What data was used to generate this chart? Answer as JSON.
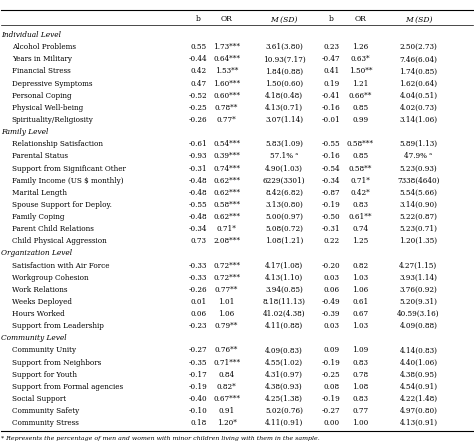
{
  "footnote": "* Represents the percentage of men and women with minor children living with them in the sample.",
  "col_headers": [
    "b",
    "OR",
    "M (SD)",
    "b",
    "OR",
    "M (SD)"
  ],
  "sections": [
    {
      "label": "Individual Level",
      "rows": [
        {
          "name": "Alcohol Problems",
          "b1": "0.55",
          "or1": "1.73***",
          "msd1": "3.61(3.80)",
          "b2": "0.23",
          "or2": "1.26",
          "msd2": "2.50(2.73)"
        },
        {
          "name": "Years in Military",
          "b1": "-0.44",
          "or1": "0.64***",
          "msd1": "10.93(7.17)",
          "b2": "-0.47",
          "or2": "0.63*",
          "msd2": "7.46(6.04)"
        },
        {
          "name": "Financial Stress",
          "b1": "0.42",
          "or1": "1.53**",
          "msd1": "1.84(0.88)",
          "b2": "0.41",
          "or2": "1.50**",
          "msd2": "1.74(0.85)"
        },
        {
          "name": "Depressive Symptoms",
          "b1": "0.47",
          "or1": "1.60***",
          "msd1": "1.50(0.60)",
          "b2": "0.19",
          "or2": "1.21",
          "msd2": "1.62(0.64)"
        },
        {
          "name": "Personal Coping",
          "b1": "-0.52",
          "or1": "0.60***",
          "msd1": "4.18(0.48)",
          "b2": "-0.41",
          "or2": "0.66**",
          "msd2": "4.04(0.51)"
        },
        {
          "name": "Physical Well-being",
          "b1": "-0.25",
          "or1": "0.78**",
          "msd1": "4.13(0.71)",
          "b2": "-0.16",
          "or2": "0.85",
          "msd2": "4.02(0.73)"
        },
        {
          "name": "Spirituality/Religiosity",
          "b1": "-0.26",
          "or1": "0.77*",
          "msd1": "3.07(1.14)",
          "b2": "-0.01",
          "or2": "0.99",
          "msd2": "3.14(1.06)"
        }
      ]
    },
    {
      "label": "Family Level",
      "rows": [
        {
          "name": "Relationship Satisfaction",
          "b1": "-0.61",
          "or1": "0.54***",
          "msd1": "5.83(1.09)",
          "b2": "-0.55",
          "or2": "0.58***",
          "msd2": "5.89(1.13)"
        },
        {
          "name": "Parental Status",
          "b1": "-0.93",
          "or1": "0.39***",
          "msd1": "57.1% ᵃ",
          "b2": "-0.16",
          "or2": "0.85",
          "msd2": "47.9% ᵃ"
        },
        {
          "name": "Support from Significant Other",
          "b1": "-0.31",
          "or1": "0.74***",
          "msd1": "4.90(1.03)",
          "b2": "-0.54",
          "or2": "0.58**",
          "msd2": "5.23(0.93)"
        },
        {
          "name": "Family Income (US $ monthly)",
          "b1": "-0.48",
          "or1": "0.62***",
          "msd1": "6229(3301)",
          "b2": "-0.34",
          "or2": "0.71*",
          "msd2": "7338(4640)"
        },
        {
          "name": "Marital Length",
          "b1": "-0.48",
          "or1": "0.62***",
          "msd1": "8.42(6.82)",
          "b2": "-0.87",
          "or2": "0.42*",
          "msd2": "5.54(5.66)"
        },
        {
          "name": "Spouse Support for Deploy.",
          "b1": "-0.55",
          "or1": "0.58***",
          "msd1": "3.13(0.80)",
          "b2": "-0.19",
          "or2": "0.83",
          "msd2": "3.14(0.90)"
        },
        {
          "name": "Family Coping",
          "b1": "-0.48",
          "or1": "0.62***",
          "msd1": "5.00(0.97)",
          "b2": "-0.50",
          "or2": "0.61**",
          "msd2": "5.22(0.87)"
        },
        {
          "name": "Parent Child Relations",
          "b1": "-0.34",
          "or1": "0.71*",
          "msd1": "5.08(0.72)",
          "b2": "-0.31",
          "or2": "0.74",
          "msd2": "5.23(0.71)"
        },
        {
          "name": "Child Physical Aggression",
          "b1": "0.73",
          "or1": "2.08***",
          "msd1": "1.08(1.21)",
          "b2": "0.22",
          "or2": "1.25",
          "msd2": "1.20(1.35)"
        }
      ]
    },
    {
      "label": "Organization Level",
      "rows": [
        {
          "name": "Satisfaction with Air Force",
          "b1": "-0.33",
          "or1": "0.72***",
          "msd1": "4.17(1.08)",
          "b2": "-0.20",
          "or2": "0.82",
          "msd2": "4.27(1.15)"
        },
        {
          "name": "Workgroup Cohesion",
          "b1": "-0.33",
          "or1": "0.72***",
          "msd1": "4.13(1.10)",
          "b2": "0.03",
          "or2": "1.03",
          "msd2": "3.93(1.14)"
        },
        {
          "name": "Work Relations",
          "b1": "-0.26",
          "or1": "0.77**",
          "msd1": "3.94(0.85)",
          "b2": "0.06",
          "or2": "1.06",
          "msd2": "3.76(0.92)"
        },
        {
          "name": "Weeks Deployed",
          "b1": "0.01",
          "or1": "1.01",
          "msd1": "8.18(11.13)",
          "b2": "-0.49",
          "or2": "0.61",
          "msd2": "5.20(9.31)"
        },
        {
          "name": "Hours Worked",
          "b1": "0.06",
          "or1": "1.06",
          "msd1": "41.02(4.38)",
          "b2": "-0.39",
          "or2": "0.67",
          "msd2": "40.59(3.16)"
        },
        {
          "name": "Support from Leadership",
          "b1": "-0.23",
          "or1": "0.79**",
          "msd1": "4.11(0.88)",
          "b2": "0.03",
          "or2": "1.03",
          "msd2": "4.09(0.88)"
        }
      ]
    },
    {
      "label": "Community Level",
      "rows": [
        {
          "name": "Community Unity",
          "b1": "-0.27",
          "or1": "0.76**",
          "msd1": "4.09(0.83)",
          "b2": "0.09",
          "or2": "1.09",
          "msd2": "4.14(0.83)"
        },
        {
          "name": "Support from Neighbors",
          "b1": "-0.35",
          "or1": "0.71***",
          "msd1": "4.55(1.02)",
          "b2": "-0.19",
          "or2": "0.83",
          "msd2": "4.40(1.06)"
        },
        {
          "name": "Support for Youth",
          "b1": "-0.17",
          "or1": "0.84",
          "msd1": "4.31(0.97)",
          "b2": "-0.25",
          "or2": "0.78",
          "msd2": "4.38(0.95)"
        },
        {
          "name": "Support from Formal agencies",
          "b1": "-0.19",
          "or1": "0.82*",
          "msd1": "4.38(0.93)",
          "b2": "0.08",
          "or2": "1.08",
          "msd2": "4.54(0.91)"
        },
        {
          "name": "Social Support",
          "b1": "-0.40",
          "or1": "0.67***",
          "msd1": "4.25(1.38)",
          "b2": "-0.19",
          "or2": "0.83",
          "msd2": "4.22(1.48)"
        },
        {
          "name": "Community Safety",
          "b1": "-0.10",
          "or1": "0.91",
          "msd1": "5.02(0.76)",
          "b2": "-0.27",
          "or2": "0.77",
          "msd2": "4.97(0.80)"
        },
        {
          "name": "Community Stress",
          "b1": "0.18",
          "or1": "1.20*",
          "msd1": "4.11(0.91)",
          "b2": "0.00",
          "or2": "1.00",
          "msd2": "4.13(0.91)"
        }
      ]
    }
  ]
}
